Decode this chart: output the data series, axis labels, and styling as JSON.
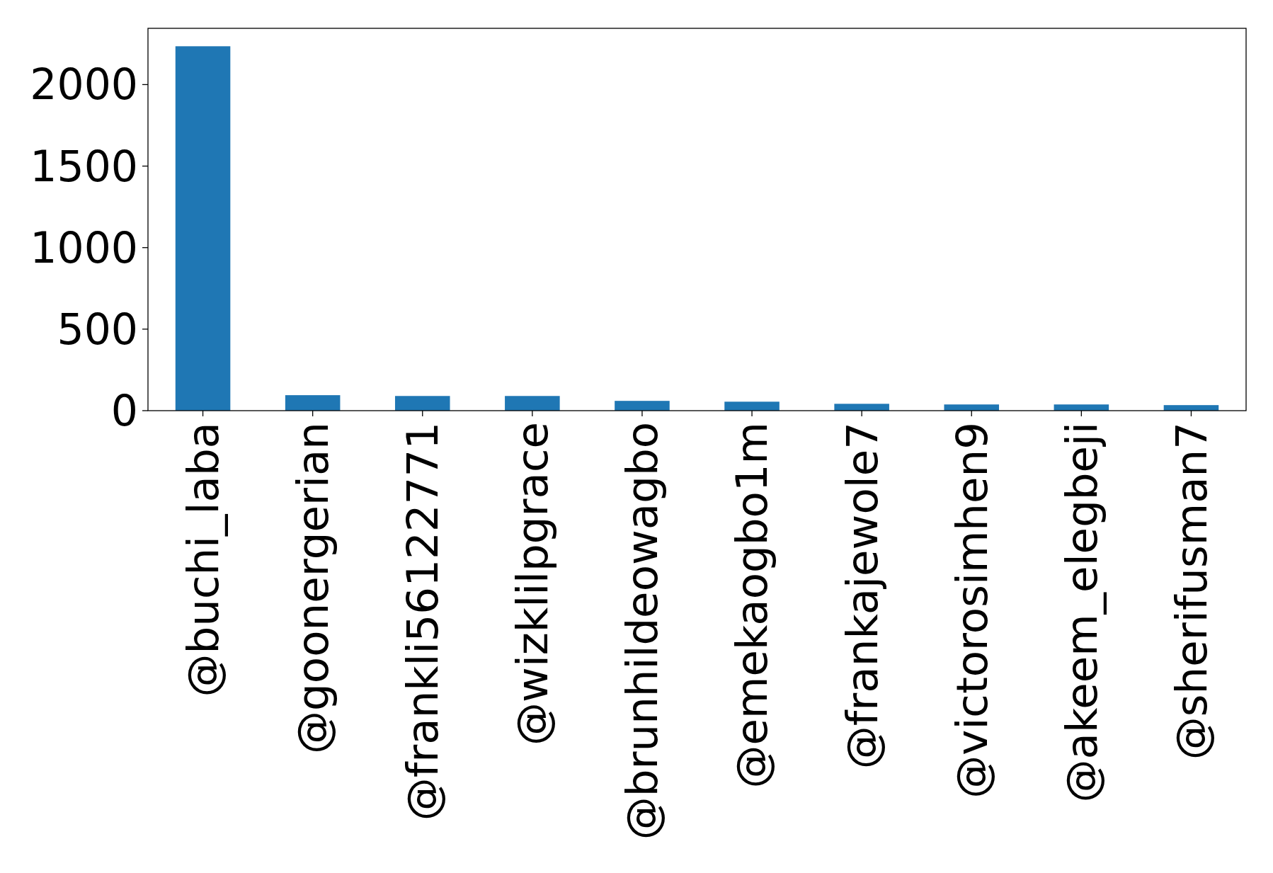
{
  "chart_data": {
    "type": "bar",
    "categories": [
      "@buchi_laba",
      "@goonergerian",
      "@frankli56122771",
      "@wizklilpgrace",
      "@brunhildeowagbo",
      "@emekaogbo1m",
      "@frankajewole7",
      "@victorosimhen9",
      "@akeem_elegbeji",
      "@sherifusman7"
    ],
    "values": [
      2235,
      95,
      90,
      90,
      60,
      55,
      42,
      38,
      38,
      34
    ],
    "color": "#1f77b4",
    "ylim": [
      0,
      2345
    ],
    "yticks": [
      0,
      500,
      1000,
      1500,
      2000
    ],
    "grid": false
  }
}
